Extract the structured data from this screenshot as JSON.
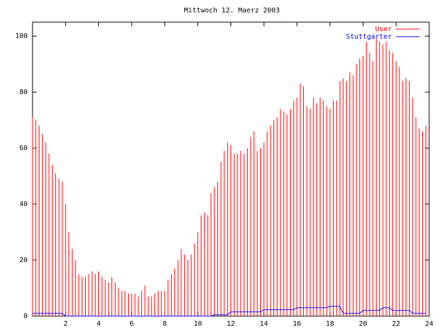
{
  "chart_data": {
    "type": "impulses",
    "title": "Mittwoch 12. Maerz 2003",
    "x": [
      0,
      0.2,
      0.4,
      0.6,
      0.8,
      1,
      1.2,
      1.4,
      1.6,
      1.8,
      2,
      2.2,
      2.4,
      2.6,
      2.8,
      3,
      3.2,
      3.4,
      3.6,
      3.8,
      4,
      4.2,
      4.4,
      4.6,
      4.8,
      5,
      5.2,
      5.4,
      5.6,
      5.8,
      6,
      6.2,
      6.4,
      6.6,
      6.8,
      7,
      7.2,
      7.4,
      7.6,
      7.8,
      8,
      8.2,
      8.4,
      8.6,
      8.8,
      9,
      9.2,
      9.4,
      9.6,
      9.8,
      10,
      10.2,
      10.4,
      10.6,
      10.8,
      11,
      11.2,
      11.4,
      11.6,
      11.8,
      12,
      12.2,
      12.4,
      12.6,
      12.8,
      13,
      13.2,
      13.4,
      13.6,
      13.8,
      14,
      14.2,
      14.4,
      14.6,
      14.8,
      15,
      15.2,
      15.4,
      15.6,
      15.8,
      16,
      16.2,
      16.4,
      16.6,
      16.8,
      17,
      17.2,
      17.4,
      17.6,
      17.8,
      18,
      18.2,
      18.4,
      18.6,
      18.8,
      19,
      19.2,
      19.4,
      19.6,
      19.8,
      20,
      20.2,
      20.4,
      20.6,
      20.8,
      21,
      21.2,
      21.4,
      21.6,
      21.8,
      22,
      22.2,
      22.4,
      22.6,
      22.8,
      23,
      23.2,
      23.4,
      23.6,
      23.8
    ],
    "series": [
      {
        "name": "User",
        "color": "#ff0000",
        "style": "impulses",
        "values": [
          71,
          70,
          68,
          65,
          62,
          58,
          54,
          51,
          49,
          48,
          40,
          30,
          24,
          20,
          15,
          14,
          14,
          15,
          16,
          15,
          16,
          14,
          13,
          12,
          14,
          12,
          10,
          9,
          9,
          8,
          8,
          8,
          7,
          9,
          11,
          7,
          7,
          8,
          9,
          9,
          9,
          13,
          15,
          17,
          20,
          24,
          22,
          20,
          22,
          26,
          30,
          36,
          37,
          36,
          44,
          46,
          48,
          55,
          59,
          62,
          61,
          58,
          58,
          59,
          58,
          60,
          64,
          66,
          59,
          60,
          62,
          66,
          68,
          70,
          71,
          74,
          73,
          72,
          74,
          77,
          78,
          83,
          82,
          75,
          74,
          78,
          76,
          78,
          77,
          75,
          74,
          77,
          77,
          84,
          85,
          84,
          87,
          86,
          90,
          92,
          93,
          98,
          94,
          91,
          99,
          98,
          97,
          98,
          95,
          94,
          91,
          89,
          84,
          85,
          84,
          78,
          71,
          67,
          66,
          68
        ]
      },
      {
        "name": "Stuttgarter",
        "color": "#0000ff",
        "style": "line",
        "values": [
          1,
          1,
          1,
          1,
          1,
          1,
          1,
          1,
          1,
          1,
          0,
          0,
          0,
          0,
          0,
          0,
          0,
          0,
          0,
          0,
          0,
          0,
          0,
          0,
          0,
          0,
          0,
          0,
          0,
          0,
          0,
          0,
          0,
          0,
          0,
          0,
          0,
          0,
          0,
          0,
          0,
          0,
          0,
          0,
          0,
          0,
          0,
          0,
          0,
          0,
          0,
          0,
          0,
          0,
          0,
          0.5,
          0.5,
          0.5,
          0.5,
          0.5,
          1.5,
          1.5,
          1.5,
          1.5,
          1.5,
          1.5,
          1.5,
          1.5,
          1.5,
          1.5,
          2.3,
          2.3,
          2.3,
          2.3,
          2.3,
          2.3,
          2.3,
          2.3,
          2.3,
          2.3,
          3,
          3,
          3,
          3,
          3,
          3,
          3,
          3,
          3,
          3,
          3.5,
          3.5,
          3.5,
          3.5,
          1,
          1,
          1,
          1,
          1,
          1,
          2,
          2,
          2,
          2,
          2,
          2,
          3,
          3,
          3,
          2,
          2,
          2,
          2,
          2,
          2,
          1,
          1,
          1,
          1,
          1
        ]
      }
    ],
    "xlim": [
      0,
      24
    ],
    "xticks": [
      2,
      4,
      6,
      8,
      10,
      12,
      14,
      16,
      18,
      20,
      22,
      24
    ],
    "ylim": [
      0,
      105
    ],
    "yticks": [
      0,
      20,
      40,
      60,
      80,
      100
    ]
  }
}
